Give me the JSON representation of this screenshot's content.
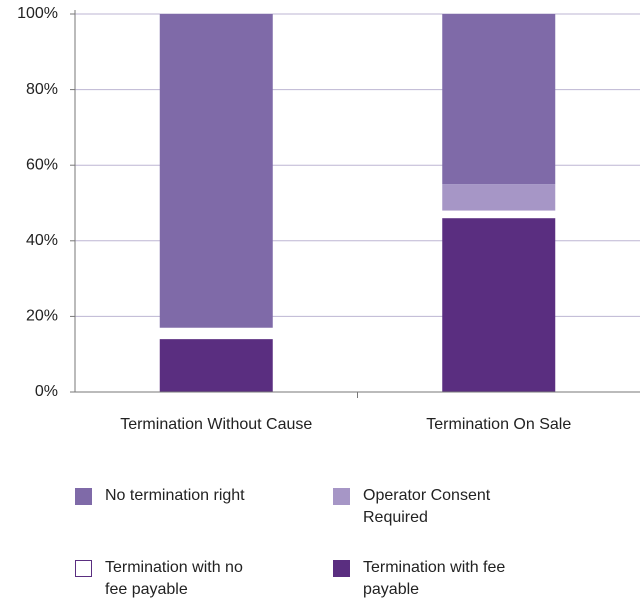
{
  "chart_data": {
    "type": "stacked_bar",
    "categories": [
      "Termination Without Cause",
      "Termination On Sale"
    ],
    "series": [
      {
        "name": "Termination with fee payable",
        "color": "#5a2e80",
        "values": [
          14,
          46
        ]
      },
      {
        "name": "Termination with no fee payable",
        "color": "#ffffff",
        "values": [
          3,
          2
        ]
      },
      {
        "name": "Operator Consent Required",
        "color": "#a696c6",
        "values": [
          0,
          7
        ]
      },
      {
        "name": "No termination right",
        "color": "#7f6aa8",
        "values": [
          83,
          45
        ]
      }
    ],
    "ylim": [
      0,
      100
    ],
    "yticks": [
      {
        "value": 0,
        "label": "0%"
      },
      {
        "value": 20,
        "label": "20%"
      },
      {
        "value": 40,
        "label": "40%"
      },
      {
        "value": 60,
        "label": "60%"
      },
      {
        "value": 80,
        "label": "80%"
      },
      {
        "value": 100,
        "label": "100%"
      }
    ],
    "grid": true
  }
}
